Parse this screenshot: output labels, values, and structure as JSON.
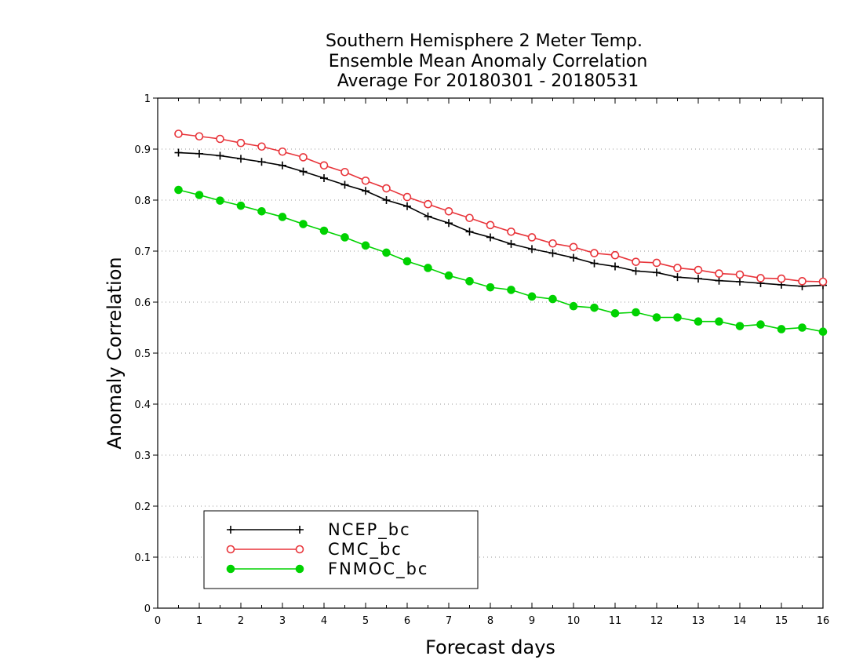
{
  "chart_data": {
    "type": "line",
    "title": [
      "Southern Hemisphere 2 Meter Temp.",
      "Ensemble Mean Anomaly Correlation",
      "Average For 20180301 - 20180531"
    ],
    "xlabel": "Forecast days",
    "ylabel": "Anomaly Correlation",
    "xlim": [
      0,
      16
    ],
    "ylim": [
      0,
      1
    ],
    "xticks": [
      "0",
      "1",
      "2",
      "3",
      "4",
      "5",
      "6",
      "7",
      "8",
      "9",
      "10",
      "11",
      "12",
      "13",
      "14",
      "15",
      "16"
    ],
    "yticks": [
      "0",
      "0.1",
      "0.2",
      "0.3",
      "0.4",
      "0.5",
      "0.6",
      "0.7",
      "0.8",
      "0.9",
      "1"
    ],
    "grid": true,
    "legend_position": "lower-left",
    "x": [
      0.5,
      1,
      1.5,
      2,
      2.5,
      3,
      3.5,
      4,
      4.5,
      5,
      5.5,
      6,
      6.5,
      7,
      7.5,
      8,
      8.5,
      9,
      9.5,
      10,
      10.5,
      11,
      11.5,
      12,
      12.5,
      13,
      13.5,
      14,
      14.5,
      15,
      15.5,
      16
    ],
    "series": [
      {
        "name": "NCEP_bc",
        "color": "#000000",
        "marker": "plus",
        "values": [
          0.893,
          0.891,
          0.887,
          0.881,
          0.875,
          0.868,
          0.856,
          0.843,
          0.83,
          0.818,
          0.8,
          0.788,
          0.768,
          0.755,
          0.738,
          0.727,
          0.714,
          0.704,
          0.696,
          0.687,
          0.676,
          0.67,
          0.661,
          0.658,
          0.649,
          0.646,
          0.642,
          0.64,
          0.637,
          0.634,
          0.631,
          0.633
        ]
      },
      {
        "name": "CMC_bc",
        "color": "#e8343a",
        "marker": "open-circle",
        "values": [
          0.93,
          0.925,
          0.92,
          0.912,
          0.905,
          0.895,
          0.884,
          0.868,
          0.855,
          0.838,
          0.823,
          0.806,
          0.792,
          0.778,
          0.765,
          0.751,
          0.738,
          0.727,
          0.715,
          0.708,
          0.696,
          0.692,
          0.679,
          0.677,
          0.667,
          0.663,
          0.656,
          0.654,
          0.647,
          0.646,
          0.641,
          0.64
        ]
      },
      {
        "name": "FNMOC_bc",
        "color": "#00d200",
        "marker": "filled-circle",
        "values": [
          0.82,
          0.81,
          0.799,
          0.789,
          0.778,
          0.767,
          0.753,
          0.74,
          0.727,
          0.711,
          0.697,
          0.68,
          0.667,
          0.652,
          0.641,
          0.629,
          0.624,
          0.611,
          0.606,
          0.592,
          0.589,
          0.578,
          0.58,
          0.57,
          0.57,
          0.562,
          0.562,
          0.553,
          0.556,
          0.547,
          0.55,
          0.542
        ]
      }
    ]
  }
}
